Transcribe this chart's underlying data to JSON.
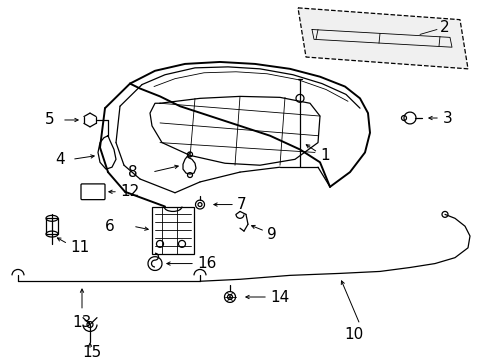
{
  "background_color": "#ffffff",
  "line_color": "#000000",
  "gray_fill": "#d8d8d8",
  "label_color": "#000000",
  "label_fontsize": 9,
  "lw_thick": 1.4,
  "lw_med": 0.9,
  "lw_thin": 0.6,
  "fig_w": 4.89,
  "fig_h": 3.6,
  "dpi": 100
}
